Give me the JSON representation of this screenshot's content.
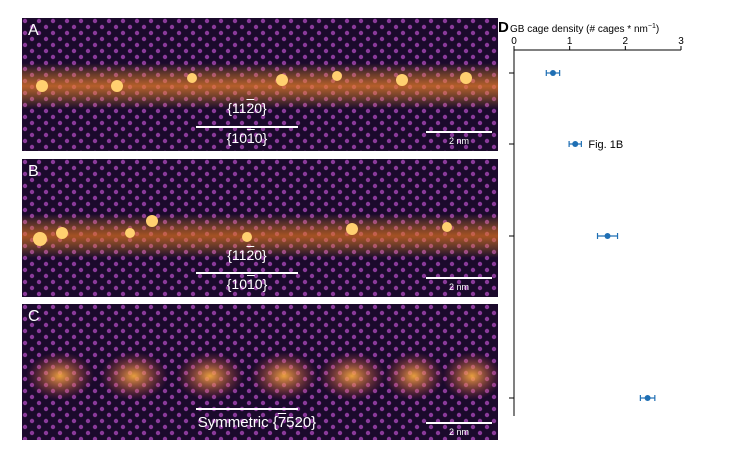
{
  "panels": [
    {
      "letter": "A",
      "line1_pre": "{11",
      "line1_bar": "2",
      "line1_post": "0}",
      "line2_pre": "{10",
      "line2_bar": "1",
      "line2_post": "0}",
      "scale": "2 nm"
    },
    {
      "letter": "B",
      "line1_pre": "{11",
      "line1_bar": "2",
      "line1_post": "0}",
      "line2_pre": "{10",
      "line2_bar": "1",
      "line2_post": "0}",
      "scale": "2 nm"
    },
    {
      "letter": "C",
      "sym_pre": "Symmetric {",
      "sym_bar": "7",
      "sym_post": "520}",
      "scale": "2 nm"
    }
  ],
  "colors": {
    "background": "#1a0a2e",
    "lattice": "#7a2f8f",
    "boundary": "#f0a020",
    "marker": "#1f6fb4"
  },
  "chart_data": {
    "type": "scatter",
    "panel_letter": "D",
    "title": "GB cage density (# cages * nm",
    "title_sup": "−1",
    "title_end": ")",
    "xlim": [
      0,
      3
    ],
    "xticks": [
      "0",
      "1",
      "2",
      "3"
    ],
    "grid": false,
    "points": [
      {
        "x": 0.7,
        "xerr": 0.12,
        "label": ""
      },
      {
        "x": 1.1,
        "xerr": 0.11,
        "label": "Fig. 1B"
      },
      {
        "x": 1.68,
        "xerr": 0.18,
        "label": ""
      },
      {
        "x": 2.4,
        "xerr": 0.13,
        "label": ""
      }
    ]
  }
}
